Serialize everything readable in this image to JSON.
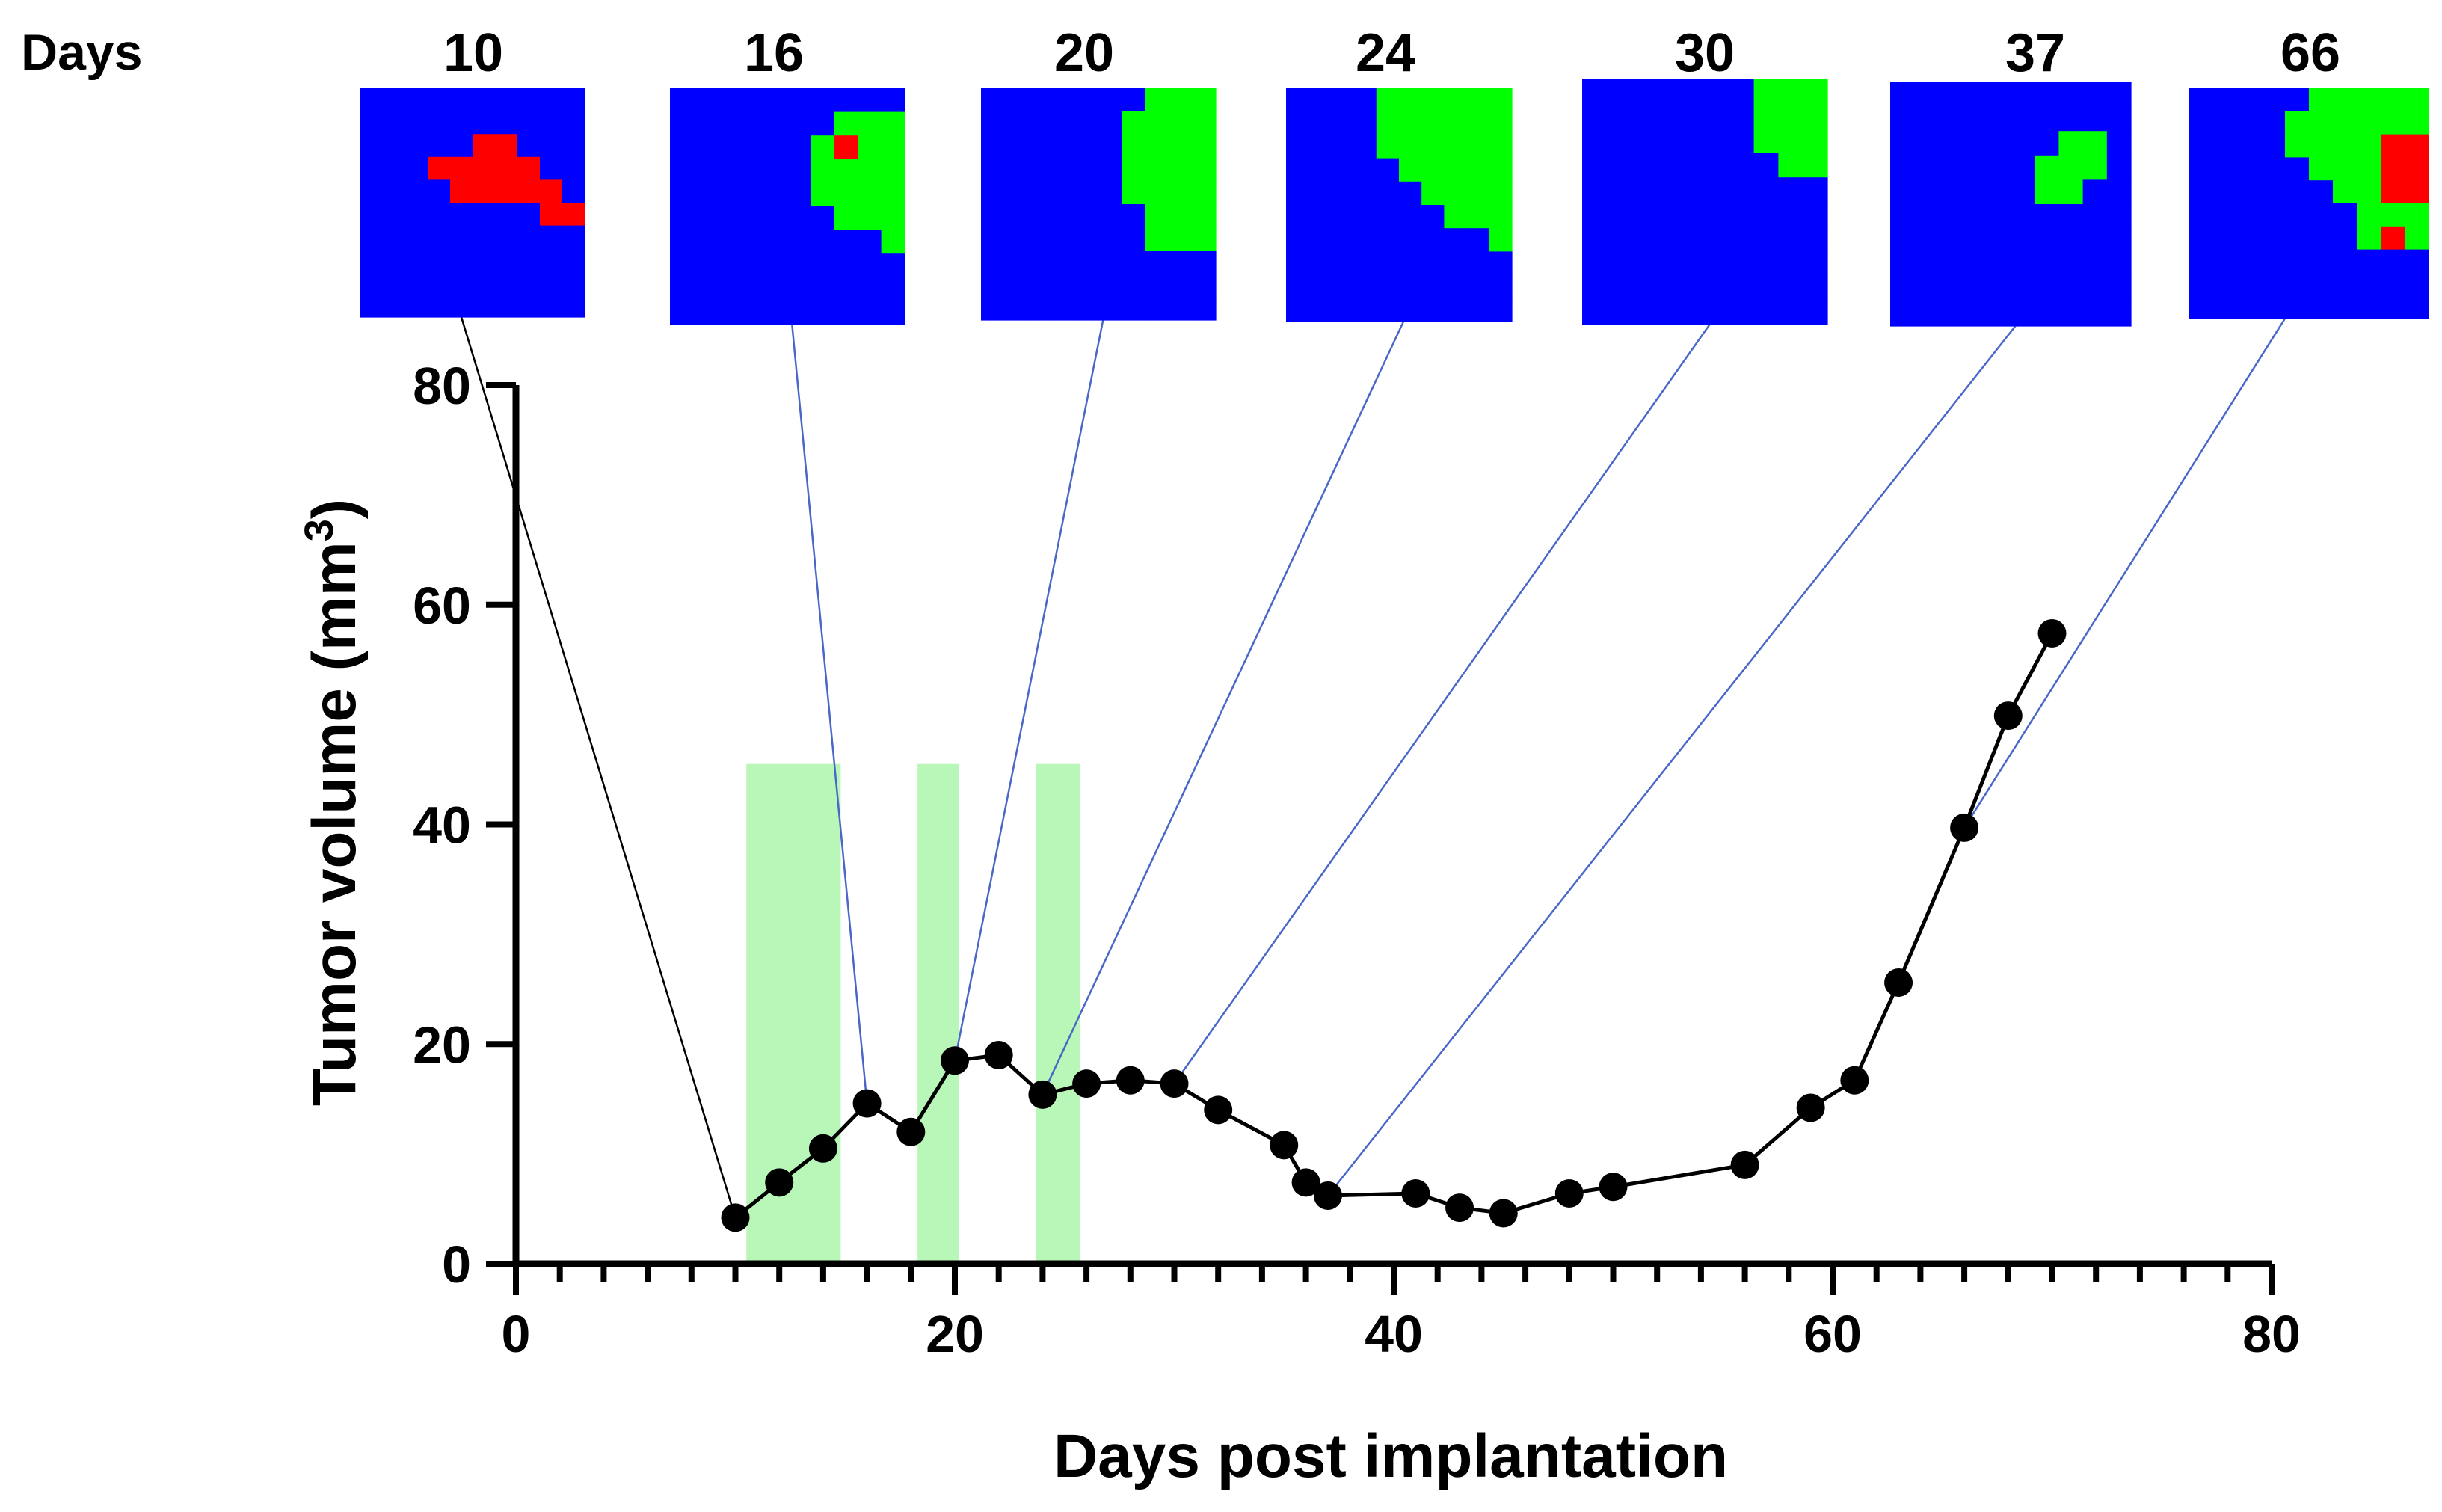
{
  "chart_data": {
    "type": "line",
    "title": "",
    "xlabel": "Days post implantation",
    "ylabel": "Tumor volume (mm",
    "ylabel_sup": "3",
    "ylabel_close": ")",
    "xlim": [
      0,
      80
    ],
    "ylim": [
      0,
      80
    ],
    "xticks": [
      0,
      20,
      40,
      60,
      80
    ],
    "yticks": [
      0,
      20,
      40,
      60,
      80
    ],
    "x_minor_step": 2,
    "grid": false,
    "series": [
      {
        "name": "Tumor volume",
        "color": "#000000",
        "x": [
          10,
          12,
          14,
          16,
          18,
          20,
          22,
          24,
          26,
          28,
          30,
          32,
          35,
          36,
          37,
          41,
          43,
          45,
          48,
          50,
          56,
          59,
          61,
          63,
          66,
          68,
          70
        ],
        "y": [
          4.2,
          7.4,
          10.5,
          14.6,
          12,
          18.5,
          19,
          15.4,
          16.4,
          16.7,
          16.4,
          14,
          10.8,
          7.4,
          6.2,
          6.4,
          5.1,
          4.6,
          6.4,
          7,
          9,
          14.2,
          16.7,
          25.6,
          39.7,
          49.9,
          57.4
        ]
      }
    ],
    "treatment_windows": [
      {
        "x_start": 10.5,
        "x_end": 14.8,
        "y_top": 45.5
      },
      {
        "x_start": 18.3,
        "x_end": 20.2,
        "y_top": 45.5
      },
      {
        "x_start": 23.7,
        "x_end": 25.7,
        "y_top": 45.5
      }
    ],
    "colors": {
      "treatment": "#b9f7b9",
      "tumor_healthy": "#0000ff",
      "tumor_treated": "#00ff00",
      "tumor_active": "#ff0000",
      "leader_black": "#000000",
      "leader_blue": "#4a67c8"
    }
  },
  "snapshots": {
    "header_label": "Days",
    "items": [
      {
        "day": "10",
        "x": 10,
        "y": 4.2,
        "leader": "black",
        "grid": [
          "BBBBBBBBBB",
          "BBBBBBBBBB",
          "BBBBBRRBBB",
          "BBBRRRRRBB",
          "BBBBRRRRRB",
          "BBBBBBBBRR",
          "BBBBBBBBBB",
          "BBBBBBBBBB",
          "BBBBBBBBBB",
          "BBBBBBBBBB"
        ]
      },
      {
        "day": "16",
        "x": 16,
        "y": 14.6,
        "leader": "blue",
        "grid": [
          "BBBBBBBBBB",
          "BBBBBBBGGG",
          "BBBBBBGRGG",
          "BBBBBBGGGG",
          "BBBBBBGGGG",
          "BBBBBBBGGG",
          "BBBBBBBBBG",
          "BBBBBBBBBB",
          "BBBBBBBBBB",
          "BBBBBBBBBB"
        ]
      },
      {
        "day": "20",
        "x": 20,
        "y": 18.5,
        "leader": "blue",
        "grid": [
          "BBBBBBBGGG",
          "BBBBBBGGGG",
          "BBBBBBGGGG",
          "BBBBBBGGGG",
          "BBBBBBGGGG",
          "BBBBBBBGGG",
          "BBBBBBBGGG",
          "BBBBBBBBBB",
          "BBBBBBBBBB",
          "BBBBBBBBBB"
        ]
      },
      {
        "day": "24",
        "x": 24,
        "y": 15.4,
        "leader": "blue",
        "grid": [
          "BBBBGGGGGG",
          "BBBBGGGGGG",
          "BBBBGGGGGG",
          "BBBBBGGGGG",
          "BBBBBBGGGG",
          "BBBBBBBGGG",
          "BBBBBBBBBG",
          "BBBBBBBBBB",
          "BBBBBBBBBB",
          "BBBBBBBBBB"
        ]
      },
      {
        "day": "30",
        "x": 30,
        "y": 16.4,
        "leader": "blue",
        "grid": [
          "BBBBBBBGGG",
          "BBBBBBBGGG",
          "BBBBBBBGGG",
          "BBBBBBBBGG",
          "BBBBBBBBBB",
          "BBBBBBBBBB",
          "BBBBBBBBBB",
          "BBBBBBBBBB",
          "BBBBBBBBBB",
          "BBBBBBBBBB"
        ]
      },
      {
        "day": "37",
        "x": 37,
        "y": 6.2,
        "leader": "blue",
        "grid": [
          "BBBBBBBBBB",
          "BBBBBBBBBB",
          "BBBBBBBGGB",
          "BBBBBBGGGB",
          "BBBBBBGGBB",
          "BBBBBBBBBB",
          "BBBBBBBBBB",
          "BBBBBBBBBB",
          "BBBBBBBBBB",
          "BBBBBBBBBB"
        ]
      },
      {
        "day": "66",
        "x": 66,
        "y": 39.7,
        "leader": "blue",
        "grid": [
          "BBBBBGGGGG",
          "BBBBGGGGGG",
          "BBBBGGGGRR",
          "BBBBBGGGRR",
          "BBBBBBGGRR",
          "BBBBBBBGGG",
          "BBBBBBBGRG",
          "BBBBBBBBBB",
          "BBBBBBBBBB",
          "BBBBBBBBBB"
        ]
      }
    ]
  }
}
